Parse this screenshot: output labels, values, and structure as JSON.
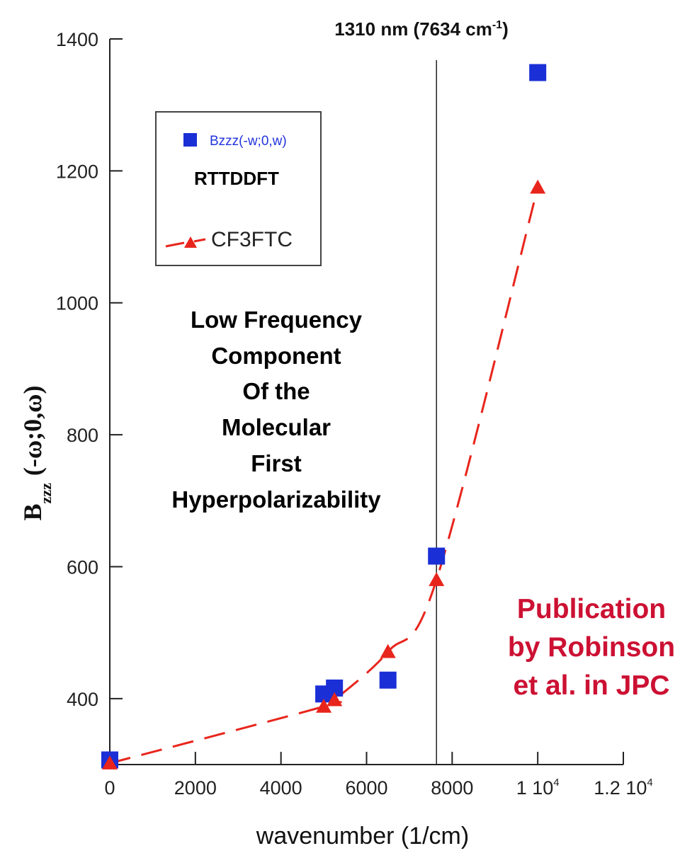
{
  "chart_data": {
    "type": "scatter",
    "xlabel": "wavenumber (1/cm)",
    "ylabel": "B",
    "ylabel_sub": "zzz",
    "ylabel_suffix": "(-ω;0,ω)",
    "xlim": [
      0,
      12000
    ],
    "ylim": [
      300,
      1400
    ],
    "x_ticks": [
      {
        "value": 0,
        "label": "0",
        "sup": ""
      },
      {
        "value": 2000,
        "label": "2000",
        "sup": ""
      },
      {
        "value": 4000,
        "label": "4000",
        "sup": ""
      },
      {
        "value": 6000,
        "label": "6000",
        "sup": ""
      },
      {
        "value": 8000,
        "label": "8000",
        "sup": ""
      },
      {
        "value": 10000,
        "label": "1 10",
        "sup": "4"
      },
      {
        "value": 12000,
        "label": "1.2 10",
        "sup": "4"
      }
    ],
    "y_ticks": [
      {
        "value": 400,
        "label": "400"
      },
      {
        "value": 600,
        "label": "600"
      },
      {
        "value": 800,
        "label": "800"
      },
      {
        "value": 1000,
        "label": "1000"
      },
      {
        "value": 1200,
        "label": "1200"
      },
      {
        "value": 1400,
        "label": "1400"
      }
    ],
    "vline": {
      "x": 7634,
      "label": "1310 nm (7634 cm",
      "label_sup": "-1",
      "label_close": ")"
    },
    "series": [
      {
        "name": "Bzzz(-w;0,w)",
        "marker": "square",
        "color": "#1a2fd6",
        "points": [
          {
            "x": 0,
            "y": 307
          },
          {
            "x": 5000,
            "y": 407
          },
          {
            "x": 5250,
            "y": 416
          },
          {
            "x": 6500,
            "y": 428
          },
          {
            "x": 7634,
            "y": 616
          },
          {
            "x": 10000,
            "y": 1349
          }
        ]
      },
      {
        "name": "CF3FTC",
        "marker": "triangle",
        "color": "#e8251c",
        "line": "dashed",
        "points": [
          {
            "x": 0,
            "y": 302
          },
          {
            "x": 5000,
            "y": 388
          },
          {
            "x": 5250,
            "y": 398
          },
          {
            "x": 6500,
            "y": 471
          },
          {
            "x": 7634,
            "y": 580
          },
          {
            "x": 10000,
            "y": 1175
          }
        ]
      }
    ],
    "legend": {
      "blue_label": "Bzzz(-w;0,w)",
      "blue_note": "RTTDDFT",
      "red_label": "CF3FTC",
      "placement": "top-left"
    },
    "annotations": {
      "center": [
        "Low Frequency",
        "Component",
        "Of the",
        "Molecular",
        "First",
        "Hyperpolarizability"
      ],
      "publication": [
        "Publication",
        "by Robinson",
        "et al. in JPC"
      ]
    }
  }
}
